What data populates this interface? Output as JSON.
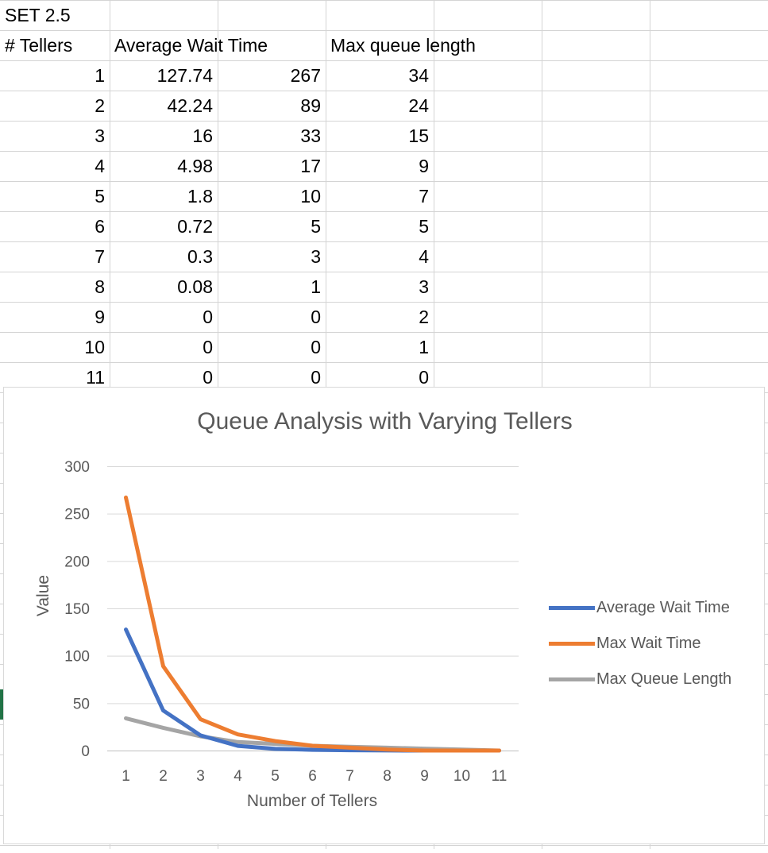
{
  "sheet": {
    "title_cell": "SET 2.5",
    "headers": [
      "# Tellers",
      "Average Wait Time",
      "",
      "Max queue length"
    ],
    "rows": [
      [
        "1",
        "127.74",
        "267",
        "34"
      ],
      [
        "2",
        "42.24",
        "89",
        "24"
      ],
      [
        "3",
        "16",
        "33",
        "15"
      ],
      [
        "4",
        "4.98",
        "17",
        "9"
      ],
      [
        "5",
        "1.8",
        "10",
        "7"
      ],
      [
        "6",
        "0.72",
        "5",
        "5"
      ],
      [
        "7",
        "0.3",
        "3",
        "4"
      ],
      [
        "8",
        "0.08",
        "1",
        "3"
      ],
      [
        "9",
        "0",
        "0",
        "2"
      ],
      [
        "10",
        "0",
        "0",
        "1"
      ],
      [
        "11",
        "0",
        "0",
        "0"
      ]
    ],
    "gridline_color": "#d4d4d4",
    "marker_color": "#217346"
  },
  "chart_data": {
    "type": "line",
    "title": "Queue Analysis with Varying Tellers",
    "xlabel": "Number of Tellers",
    "ylabel": "Value",
    "x": [
      1,
      2,
      3,
      4,
      5,
      6,
      7,
      8,
      9,
      10,
      11
    ],
    "x_tick_labels": [
      "1",
      "2",
      "3",
      "4",
      "5",
      "6",
      "7",
      "8",
      "9",
      "10",
      "11"
    ],
    "y_ticks": [
      0,
      50,
      100,
      150,
      200,
      250,
      300
    ],
    "y_tick_labels": [
      "0",
      "50",
      "100",
      "150",
      "200",
      "250",
      "300"
    ],
    "ylim": [
      0,
      300
    ],
    "grid": true,
    "legend_position": "right",
    "series": [
      {
        "name": "Average Wait Time",
        "color": "#4472c4",
        "values": [
          127.74,
          42.24,
          16,
          4.98,
          1.8,
          0.72,
          0.3,
          0.08,
          0,
          0,
          0
        ]
      },
      {
        "name": "Max Wait Time",
        "color": "#ed7d31",
        "values": [
          267,
          89,
          33,
          17,
          10,
          5,
          3,
          1,
          0,
          0,
          0
        ]
      },
      {
        "name": "Max Queue Length",
        "color": "#a5a5a5",
        "values": [
          34,
          24,
          15,
          9,
          7,
          5,
          4,
          3,
          2,
          1,
          0
        ]
      }
    ]
  }
}
